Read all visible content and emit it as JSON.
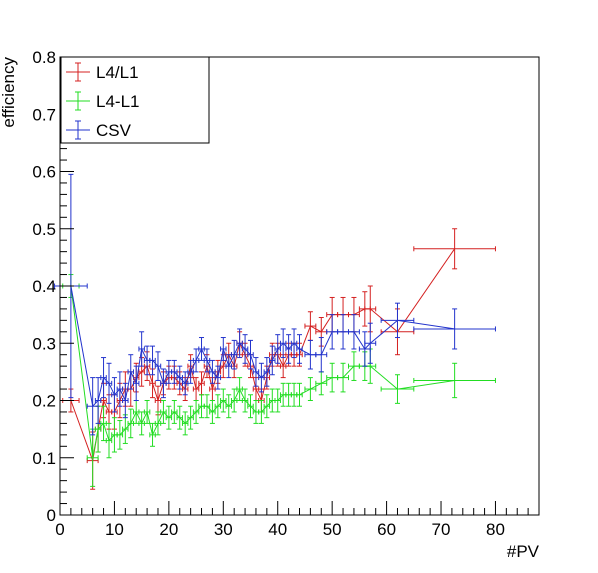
{
  "chart_data": {
    "type": "line",
    "title": "",
    "xlabel": "#PV",
    "ylabel": "efficiency",
    "xlim": [
      0,
      88
    ],
    "ylim": [
      0,
      0.8
    ],
    "x_ticks": [
      "0",
      "10",
      "20",
      "30",
      "40",
      "50",
      "60",
      "70",
      "80"
    ],
    "y_ticks": [
      "0",
      "0.1",
      "0.2",
      "0.3",
      "0.4",
      "0.5",
      "0.6",
      "0.7",
      "0.8"
    ],
    "grid": false,
    "legend_position": "top-left",
    "series": [
      {
        "name": "L4/L1",
        "color": "#d42020",
        "points": [
          [
            2,
            0.2,
            1.5,
            0.02
          ],
          [
            6,
            0.095,
            1,
            0.05
          ],
          [
            7,
            0.15,
            0.5,
            0.04
          ],
          [
            8,
            0.2,
            0.5,
            0.03
          ],
          [
            9,
            0.18,
            0.5,
            0.03
          ],
          [
            10,
            0.18,
            0.5,
            0.03
          ],
          [
            11,
            0.2,
            0.5,
            0.03
          ],
          [
            12,
            0.22,
            0.5,
            0.03
          ],
          [
            13,
            0.22,
            0.5,
            0.03
          ],
          [
            14,
            0.24,
            0.5,
            0.025
          ],
          [
            15,
            0.25,
            0.5,
            0.025
          ],
          [
            16,
            0.26,
            0.5,
            0.025
          ],
          [
            17,
            0.23,
            0.5,
            0.025
          ],
          [
            18,
            0.2,
            0.5,
            0.025
          ],
          [
            19,
            0.23,
            0.5,
            0.02
          ],
          [
            20,
            0.24,
            0.5,
            0.02
          ],
          [
            21,
            0.24,
            0.5,
            0.02
          ],
          [
            22,
            0.23,
            0.5,
            0.02
          ],
          [
            23,
            0.22,
            0.5,
            0.02
          ],
          [
            24,
            0.26,
            0.5,
            0.02
          ],
          [
            25,
            0.22,
            0.5,
            0.02
          ],
          [
            26,
            0.23,
            0.5,
            0.02
          ],
          [
            27,
            0.26,
            0.5,
            0.02
          ],
          [
            28,
            0.22,
            0.5,
            0.02
          ],
          [
            29,
            0.25,
            0.5,
            0.02
          ],
          [
            30,
            0.26,
            0.5,
            0.02
          ],
          [
            31,
            0.28,
            0.5,
            0.02
          ],
          [
            32,
            0.26,
            0.5,
            0.02
          ],
          [
            33,
            0.3,
            0.5,
            0.02
          ],
          [
            34,
            0.28,
            0.5,
            0.02
          ],
          [
            35,
            0.26,
            0.5,
            0.02
          ],
          [
            36,
            0.22,
            0.5,
            0.02
          ],
          [
            37,
            0.2,
            0.5,
            0.02
          ],
          [
            38,
            0.24,
            0.5,
            0.02
          ],
          [
            39,
            0.28,
            0.5,
            0.02
          ],
          [
            40,
            0.28,
            0.5,
            0.02
          ],
          [
            41,
            0.26,
            0.5,
            0.02
          ],
          [
            42,
            0.28,
            0.5,
            0.02
          ],
          [
            43,
            0.28,
            0.5,
            0.02
          ],
          [
            44,
            0.28,
            0.5,
            0.02
          ],
          [
            46,
            0.33,
            1,
            0.025
          ],
          [
            48,
            0.32,
            1,
            0.025
          ],
          [
            50,
            0.35,
            1,
            0.03
          ],
          [
            52,
            0.35,
            1,
            0.03
          ],
          [
            54,
            0.35,
            1,
            0.03
          ],
          [
            56,
            0.36,
            1,
            0.03
          ],
          [
            57,
            0.36,
            1,
            0.04
          ],
          [
            62,
            0.32,
            3,
            0.04
          ],
          [
            72.5,
            0.465,
            7.5,
            0.035
          ]
        ]
      },
      {
        "name": "L4-L1",
        "color": "#22dd22",
        "points": [
          [
            2,
            0.4,
            1.5,
            0.02
          ],
          [
            6,
            0.1,
            1,
            0.05
          ],
          [
            7,
            0.15,
            0.5,
            0.04
          ],
          [
            8,
            0.16,
            0.5,
            0.03
          ],
          [
            9,
            0.13,
            0.5,
            0.03
          ],
          [
            10,
            0.14,
            0.5,
            0.03
          ],
          [
            11,
            0.14,
            0.5,
            0.025
          ],
          [
            12,
            0.15,
            0.5,
            0.025
          ],
          [
            13,
            0.16,
            0.5,
            0.025
          ],
          [
            14,
            0.18,
            0.5,
            0.02
          ],
          [
            15,
            0.16,
            0.5,
            0.02
          ],
          [
            16,
            0.18,
            0.5,
            0.02
          ],
          [
            17,
            0.14,
            0.5,
            0.02
          ],
          [
            18,
            0.16,
            0.5,
            0.02
          ],
          [
            19,
            0.18,
            0.5,
            0.02
          ],
          [
            20,
            0.17,
            0.5,
            0.02
          ],
          [
            21,
            0.18,
            0.5,
            0.02
          ],
          [
            22,
            0.17,
            0.5,
            0.02
          ],
          [
            23,
            0.16,
            0.5,
            0.02
          ],
          [
            24,
            0.17,
            0.5,
            0.02
          ],
          [
            25,
            0.18,
            0.5,
            0.02
          ],
          [
            26,
            0.19,
            0.5,
            0.02
          ],
          [
            27,
            0.19,
            0.5,
            0.02
          ],
          [
            28,
            0.18,
            0.5,
            0.02
          ],
          [
            29,
            0.19,
            0.5,
            0.02
          ],
          [
            30,
            0.2,
            0.5,
            0.02
          ],
          [
            31,
            0.19,
            0.5,
            0.02
          ],
          [
            32,
            0.2,
            0.5,
            0.02
          ],
          [
            33,
            0.22,
            0.5,
            0.02
          ],
          [
            34,
            0.2,
            0.5,
            0.02
          ],
          [
            35,
            0.19,
            0.5,
            0.02
          ],
          [
            36,
            0.18,
            0.5,
            0.02
          ],
          [
            37,
            0.18,
            0.5,
            0.02
          ],
          [
            38,
            0.19,
            0.5,
            0.02
          ],
          [
            39,
            0.2,
            0.5,
            0.02
          ],
          [
            40,
            0.2,
            0.5,
            0.02
          ],
          [
            41,
            0.21,
            0.5,
            0.02
          ],
          [
            42,
            0.21,
            0.5,
            0.02
          ],
          [
            43,
            0.21,
            0.5,
            0.02
          ],
          [
            44,
            0.21,
            0.5,
            0.02
          ],
          [
            46,
            0.22,
            1,
            0.02
          ],
          [
            48,
            0.23,
            1,
            0.02
          ],
          [
            50,
            0.24,
            1,
            0.025
          ],
          [
            52,
            0.24,
            1,
            0.025
          ],
          [
            54,
            0.26,
            1,
            0.025
          ],
          [
            56,
            0.26,
            1,
            0.025
          ],
          [
            57,
            0.26,
            1,
            0.03
          ],
          [
            62,
            0.22,
            3,
            0.025
          ],
          [
            72.5,
            0.235,
            7.5,
            0.03
          ]
        ]
      },
      {
        "name": "CSV",
        "color": "#2233cc",
        "points": [
          [
            2,
            0.4,
            3,
            0.195
          ],
          [
            6,
            0.19,
            1,
            0.05
          ],
          [
            7,
            0.2,
            0.5,
            0.04
          ],
          [
            8,
            0.24,
            0.5,
            0.035
          ],
          [
            9,
            0.23,
            0.5,
            0.035
          ],
          [
            10,
            0.21,
            0.5,
            0.03
          ],
          [
            11,
            0.22,
            0.5,
            0.03
          ],
          [
            12,
            0.2,
            0.5,
            0.03
          ],
          [
            13,
            0.25,
            0.5,
            0.03
          ],
          [
            14,
            0.23,
            0.5,
            0.03
          ],
          [
            15,
            0.29,
            0.5,
            0.03
          ],
          [
            16,
            0.27,
            0.5,
            0.025
          ],
          [
            17,
            0.27,
            0.5,
            0.025
          ],
          [
            18,
            0.26,
            0.5,
            0.025
          ],
          [
            19,
            0.23,
            0.5,
            0.025
          ],
          [
            20,
            0.25,
            0.5,
            0.02
          ],
          [
            21,
            0.25,
            0.5,
            0.02
          ],
          [
            22,
            0.24,
            0.5,
            0.02
          ],
          [
            23,
            0.23,
            0.5,
            0.02
          ],
          [
            24,
            0.25,
            0.5,
            0.02
          ],
          [
            25,
            0.27,
            0.5,
            0.02
          ],
          [
            26,
            0.29,
            0.5,
            0.02
          ],
          [
            27,
            0.27,
            0.5,
            0.02
          ],
          [
            28,
            0.25,
            0.5,
            0.02
          ],
          [
            29,
            0.24,
            0.5,
            0.02
          ],
          [
            30,
            0.29,
            0.5,
            0.02
          ],
          [
            31,
            0.26,
            0.5,
            0.02
          ],
          [
            32,
            0.28,
            0.5,
            0.025
          ],
          [
            33,
            0.3,
            0.5,
            0.025
          ],
          [
            34,
            0.29,
            0.5,
            0.025
          ],
          [
            35,
            0.28,
            0.5,
            0.025
          ],
          [
            36,
            0.25,
            0.5,
            0.025
          ],
          [
            37,
            0.24,
            0.5,
            0.025
          ],
          [
            38,
            0.25,
            0.5,
            0.025
          ],
          [
            39,
            0.27,
            0.5,
            0.025
          ],
          [
            40,
            0.29,
            0.5,
            0.025
          ],
          [
            41,
            0.3,
            0.5,
            0.025
          ],
          [
            42,
            0.29,
            0.5,
            0.025
          ],
          [
            43,
            0.3,
            0.5,
            0.025
          ],
          [
            44,
            0.29,
            0.5,
            0.025
          ],
          [
            46,
            0.28,
            1,
            0.025
          ],
          [
            48,
            0.28,
            1,
            0.03
          ],
          [
            50,
            0.32,
            1,
            0.03
          ],
          [
            52,
            0.32,
            1,
            0.03
          ],
          [
            54,
            0.32,
            1,
            0.03
          ],
          [
            56,
            0.29,
            1,
            0.03
          ],
          [
            57,
            0.3,
            1,
            0.035
          ],
          [
            62,
            0.34,
            3,
            0.03
          ],
          [
            72.5,
            0.325,
            7.5,
            0.035
          ]
        ]
      }
    ]
  }
}
